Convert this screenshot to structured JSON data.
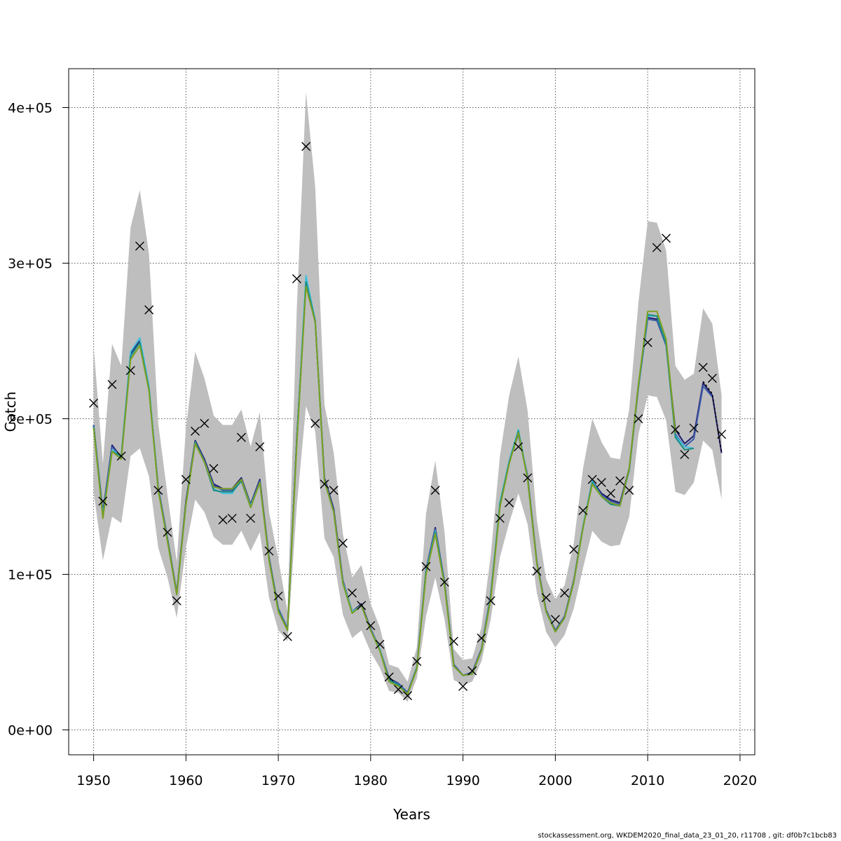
{
  "chart_data": {
    "type": "line",
    "title": "",
    "xlabel": "Years",
    "ylabel": "Catch",
    "xlim": [
      1947.3,
      2021.6
    ],
    "ylim": [
      -16000,
      425000
    ],
    "x_ticks": [
      1950,
      1960,
      1970,
      1980,
      1990,
      2000,
      2010,
      2020
    ],
    "x_tick_labels": [
      "1950",
      "1960",
      "1970",
      "1980",
      "1990",
      "2000",
      "2010",
      "2020"
    ],
    "y_ticks": [
      0,
      100000,
      200000,
      300000,
      400000
    ],
    "y_tick_labels": [
      "0e+00",
      "1e+05",
      "2e+05",
      "3e+05",
      "4e+05"
    ],
    "grid": true,
    "confidence_band": {
      "color": "#bebebe",
      "x": [
        1950,
        1951,
        1952,
        1953,
        1954,
        1955,
        1956,
        1957,
        1958,
        1959,
        1960,
        1961,
        1962,
        1963,
        1964,
        1965,
        1966,
        1967,
        1968,
        1969,
        1970,
        1971,
        1972,
        1973,
        1974,
        1975,
        1976,
        1977,
        1978,
        1979,
        1980,
        1981,
        1982,
        1983,
        1984,
        1985,
        1986,
        1987,
        1988,
        1989,
        1990,
        1991,
        1992,
        1993,
        1994,
        1995,
        1996,
        1997,
        1998,
        1999,
        2000,
        2001,
        2002,
        2003,
        2004,
        2005,
        2006,
        2007,
        2008,
        2009,
        2010,
        2011,
        2012,
        2013,
        2014,
        2015,
        2016,
        2017,
        2018
      ],
      "lower": [
        153000,
        109000,
        137000,
        133000,
        176000,
        181000,
        163000,
        117000,
        98000,
        72000,
        117000,
        148000,
        140000,
        124000,
        119000,
        119000,
        128000,
        115000,
        127000,
        85000,
        64000,
        57000,
        144000,
        208000,
        192000,
        123000,
        111000,
        74000,
        59000,
        64000,
        50000,
        40000,
        25000,
        24000,
        18000,
        33000,
        73000,
        98000,
        71000,
        32000,
        29000,
        31000,
        44000,
        71000,
        111000,
        133000,
        152000,
        132000,
        88000,
        63000,
        53000,
        61000,
        78000,
        104000,
        128000,
        121000,
        118000,
        119000,
        137000,
        190000,
        215000,
        214000,
        199000,
        153000,
        151000,
        159000,
        186000,
        180000,
        148000
      ],
      "upper": [
        247000,
        171000,
        248000,
        234000,
        323000,
        347000,
        306000,
        197000,
        151000,
        108000,
        194000,
        243000,
        226000,
        202000,
        196000,
        196000,
        206000,
        182000,
        204000,
        140000,
        110000,
        76000,
        271000,
        410000,
        349000,
        209000,
        178000,
        126000,
        98000,
        106000,
        81000,
        66000,
        42000,
        40000,
        31000,
        53000,
        139000,
        173000,
        127000,
        52000,
        45000,
        46000,
        66000,
        112000,
        176000,
        215000,
        240000,
        205000,
        135000,
        97000,
        84000,
        93000,
        120000,
        168000,
        200000,
        185000,
        175000,
        174000,
        206000,
        275000,
        327000,
        326000,
        308000,
        234000,
        225000,
        229000,
        271000,
        261000,
        215000
      ]
    },
    "series": [
      {
        "color": "#1e1b6e",
        "x": [
          1950,
          1951,
          1952,
          1953,
          1954,
          1955,
          1956,
          1957,
          1958,
          1959,
          1960,
          1961,
          1962,
          1963,
          1964,
          1965,
          1966,
          1967,
          1968,
          1969,
          1970,
          1971,
          1972,
          1973,
          1974,
          1975,
          1976,
          1977,
          1978,
          1979,
          1980,
          1981,
          1982,
          1983,
          1984,
          1985,
          1986,
          1987,
          1988,
          1989,
          1990,
          1991,
          1992,
          1993,
          1994,
          1995,
          1996,
          1997,
          1998,
          1999,
          2000,
          2001,
          2002,
          2003,
          2004,
          2005,
          2006,
          2007,
          2008,
          2009,
          2010,
          2011,
          2012,
          2013,
          2014,
          2015,
          2016,
          2017,
          2018
        ],
        "values": [
          196000,
          140000,
          183000,
          175000,
          242000,
          250000,
          220000,
          156000,
          123000,
          88000,
          147000,
          186000,
          174000,
          158000,
          155000,
          155000,
          162000,
          145000,
          161000,
          111000,
          78000,
          65000,
          188000,
          288000,
          262000,
          162000,
          142000,
          96000,
          76000,
          81000,
          65000,
          52000,
          33000,
          30000,
          24000,
          40000,
          103000,
          130000,
          95000,
          42000,
          35000,
          37000,
          52000,
          87000,
          145000,
          172000,
          191000,
          163000,
          108000,
          77000,
          64000,
          73000,
          96000,
          131000,
          160000,
          152000,
          148000,
          146000,
          168000,
          222000,
          265000,
          264000,
          248000,
          193000,
          184000,
          189000,
          223000,
          215000,
          178000
        ]
      },
      {
        "color": "#3b5aa8",
        "x": [
          1950,
          1951,
          1952,
          1953,
          1954,
          1955,
          1956,
          1957,
          1958,
          1959,
          1960,
          1961,
          1962,
          1963,
          1964,
          1965,
          1966,
          1967,
          1968,
          1969,
          1970,
          1971,
          1972,
          1973,
          1974,
          1975,
          1976,
          1977,
          1978,
          1979,
          1980,
          1981,
          1982,
          1983,
          1984,
          1985,
          1986,
          1987,
          1988,
          1989,
          1990,
          1991,
          1992,
          1993,
          1994,
          1995,
          1996,
          1997,
          1998,
          1999,
          2000,
          2001,
          2002,
          2003,
          2004,
          2005,
          2006,
          2007,
          2008,
          2009,
          2010,
          2011,
          2012,
          2013,
          2014,
          2015,
          2016,
          2017,
          2018
        ],
        "values": [
          196000,
          139000,
          182000,
          175000,
          241000,
          249000,
          219000,
          155000,
          122000,
          88000,
          146000,
          185000,
          173000,
          157000,
          154000,
          154000,
          161000,
          144000,
          160000,
          110000,
          78000,
          65000,
          187000,
          287000,
          262000,
          161000,
          141000,
          95000,
          76000,
          80000,
          65000,
          52000,
          32000,
          30000,
          24000,
          40000,
          102000,
          129000,
          95000,
          42000,
          35000,
          37000,
          52000,
          86000,
          144000,
          172000,
          190000,
          162000,
          108000,
          77000,
          64000,
          73000,
          96000,
          131000,
          159000,
          151000,
          147000,
          145000,
          167000,
          220000,
          264000,
          263000,
          247000,
          190000,
          182000,
          187000,
          221000,
          214000,
          null
        ]
      },
      {
        "color": "#3fc1de",
        "x": [
          1950,
          1951,
          1952,
          1953,
          1954,
          1955,
          1956,
          1957,
          1958,
          1959,
          1960,
          1961,
          1962,
          1963,
          1964,
          1965,
          1966,
          1967,
          1968,
          1969,
          1970,
          1971,
          1972,
          1973,
          1974,
          1975,
          1976,
          1977,
          1978,
          1979,
          1980,
          1981,
          1982,
          1983,
          1984,
          1985,
          1986,
          1987,
          1988,
          1989,
          1990,
          1991,
          1992,
          1993,
          1994,
          1995,
          1996,
          1997,
          1998,
          1999,
          2000,
          2001,
          2002,
          2003,
          2004,
          2005,
          2006,
          2007,
          2008,
          2009,
          2010,
          2011,
          2012,
          2013,
          2014,
          2015
        ],
        "values": [
          195000,
          138000,
          180000,
          176000,
          243000,
          252000,
          221000,
          155000,
          122000,
          87000,
          145000,
          185000,
          172000,
          155000,
          152000,
          152000,
          161000,
          144000,
          159000,
          110000,
          77000,
          64000,
          186000,
          292000,
          263000,
          160000,
          140000,
          95000,
          76000,
          80000,
          64000,
          52000,
          32000,
          29000,
          23000,
          40000,
          102000,
          128000,
          94000,
          41000,
          35000,
          36000,
          51000,
          86000,
          146000,
          173000,
          193000,
          162000,
          107000,
          76000,
          63000,
          72000,
          95000,
          131000,
          160000,
          150000,
          145000,
          144000,
          167000,
          221000,
          266000,
          266000,
          248000,
          189000,
          182000,
          181000
        ]
      },
      {
        "color": "#1a8a80",
        "x": [
          1950,
          1951,
          1952,
          1953,
          1954,
          1955,
          1956,
          1957,
          1958,
          1959,
          1960,
          1961,
          1962,
          1963,
          1964,
          1965,
          1966,
          1967,
          1968,
          1969,
          1970,
          1971,
          1972,
          1973,
          1974,
          1975,
          1976,
          1977,
          1978,
          1979,
          1980,
          1981,
          1982,
          1983,
          1984,
          1985,
          1986,
          1987,
          1988,
          1989,
          1990,
          1991,
          1992,
          1993,
          1994,
          1995,
          1996,
          1997,
          1998,
          1999,
          2000,
          2001,
          2002,
          2003,
          2004,
          2005,
          2006,
          2007,
          2008,
          2009,
          2010,
          2011,
          2012,
          2013,
          2014,
          2015
        ],
        "values": [
          195000,
          137000,
          179000,
          176000,
          240000,
          249000,
          219000,
          154000,
          122000,
          87000,
          145000,
          185000,
          172000,
          154000,
          153000,
          153000,
          160000,
          143000,
          159000,
          110000,
          77000,
          64000,
          185000,
          288000,
          263000,
          160000,
          140000,
          94000,
          75000,
          80000,
          64000,
          51000,
          32000,
          29000,
          23000,
          40000,
          101000,
          127000,
          94000,
          41000,
          35000,
          36000,
          51000,
          85000,
          145000,
          172000,
          192000,
          161000,
          107000,
          76000,
          63000,
          72000,
          95000,
          130000,
          159000,
          150000,
          145000,
          144000,
          167000,
          221000,
          267000,
          266000,
          248000,
          188000,
          180000,
          181000
        ]
      },
      {
        "color": "#7da022",
        "x": [
          1950,
          1951,
          1952,
          1953,
          1954,
          1955,
          1956,
          1957,
          1958,
          1959,
          1960,
          1961,
          1962,
          1963,
          1964,
          1965,
          1966,
          1967,
          1968,
          1969,
          1970,
          1971,
          1972,
          1973,
          1974,
          1975,
          1976,
          1977,
          1978,
          1979,
          1980,
          1981,
          1982,
          1983,
          1984,
          1985,
          1986,
          1987,
          1988,
          1989,
          1990,
          1991,
          1992,
          1993,
          1994,
          1995,
          1996,
          1997,
          1998,
          1999,
          2000,
          2001,
          2002,
          2003,
          2004,
          2005,
          2006,
          2007,
          2008,
          2009,
          2010,
          2011,
          2012,
          2013
        ],
        "values": [
          194000,
          136000,
          179000,
          174000,
          238000,
          247000,
          218000,
          154000,
          121000,
          87000,
          145000,
          184000,
          172000,
          156000,
          155000,
          155000,
          161000,
          143000,
          159000,
          109000,
          76000,
          64000,
          184000,
          285000,
          262000,
          160000,
          140000,
          94000,
          75000,
          80000,
          64000,
          51000,
          31000,
          28000,
          23000,
          39000,
          100000,
          126000,
          93000,
          41000,
          35000,
          36000,
          51000,
          84000,
          143000,
          171000,
          191000,
          161000,
          107000,
          76000,
          63000,
          72000,
          95000,
          130000,
          158000,
          150000,
          146000,
          144000,
          168000,
          222000,
          269000,
          269000,
          251000,
          191000
        ]
      },
      {
        "color": "#000000",
        "dashed": true,
        "x": [
          2016,
          2017,
          2018
        ],
        "values": [
          224000,
          216000,
          178000
        ]
      }
    ],
    "observed": {
      "marker": "x",
      "x": [
        1950,
        1951,
        1952,
        1953,
        1954,
        1955,
        1956,
        1957,
        1958,
        1959,
        1960,
        1961,
        1962,
        1963,
        1964,
        1965,
        1966,
        1967,
        1968,
        1969,
        1970,
        1971,
        1972,
        1973,
        1974,
        1975,
        1976,
        1977,
        1978,
        1979,
        1980,
        1981,
        1982,
        1983,
        1984,
        1985,
        1986,
        1987,
        1988,
        1989,
        1990,
        1991,
        1992,
        1993,
        1994,
        1995,
        1996,
        1997,
        1998,
        1999,
        2000,
        2001,
        2002,
        2003,
        2004,
        2005,
        2006,
        2007,
        2008,
        2009,
        2010,
        2011,
        2012,
        2013,
        2014,
        2015,
        2016,
        2017,
        2018
      ],
      "values": [
        210000,
        147000,
        222000,
        176000,
        231000,
        311000,
        270000,
        154000,
        127000,
        83000,
        161000,
        192000,
        197000,
        168000,
        135000,
        136000,
        188000,
        136000,
        182000,
        115000,
        86000,
        60000,
        290000,
        375000,
        197000,
        158000,
        154000,
        120000,
        88000,
        80000,
        67000,
        55000,
        34000,
        26000,
        22000,
        44000,
        105000,
        154000,
        95000,
        57000,
        28000,
        38000,
        59000,
        83000,
        136000,
        146000,
        182000,
        162000,
        102000,
        85000,
        71000,
        88000,
        116000,
        141000,
        161000,
        159000,
        152000,
        160000,
        154000,
        200000,
        249000,
        310000,
        316000,
        193000,
        177000,
        194000,
        233000,
        226000,
        190000
      ]
    }
  },
  "footer": "stockassessment.org, WKDEM2020_final_data_23_01_20, r11708 , git: df0b7c1bcb83"
}
